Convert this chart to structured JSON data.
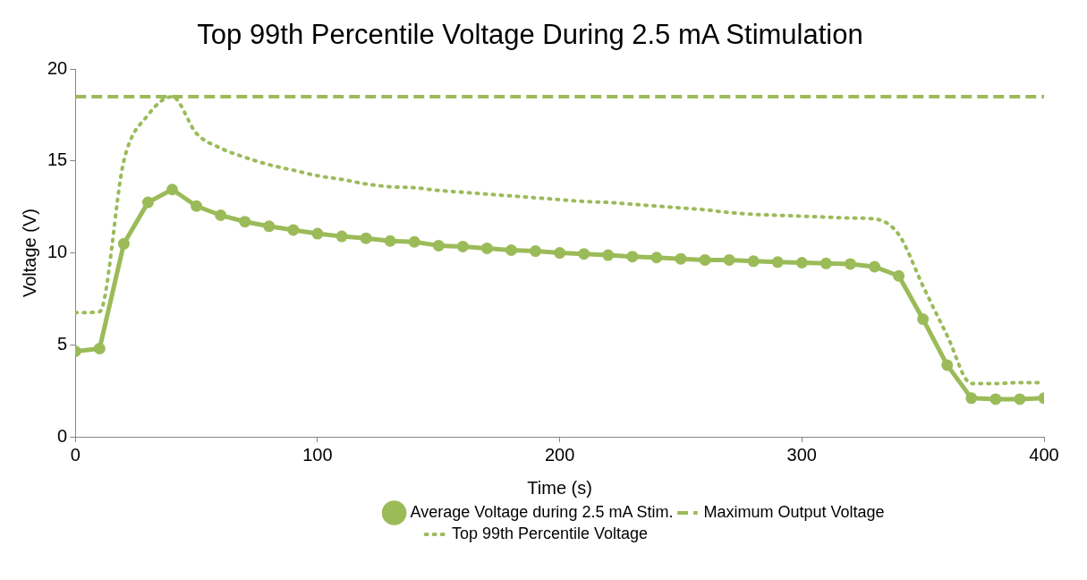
{
  "chart_data": {
    "type": "line",
    "title": "Top 99th Percentile Voltage During 2.5 mA Stimulation",
    "xlabel": "Time (s)",
    "ylabel": "Voltage (V)",
    "x": [
      0,
      10,
      20,
      30,
      40,
      50,
      60,
      70,
      80,
      90,
      100,
      110,
      120,
      130,
      140,
      150,
      160,
      170,
      180,
      190,
      200,
      210,
      220,
      230,
      240,
      250,
      260,
      270,
      280,
      290,
      300,
      310,
      320,
      330,
      340,
      350,
      360,
      370,
      380,
      390,
      400
    ],
    "series": [
      {
        "name": "Average Voltage during 2.5 mA Stim.",
        "color": "#9bbb59",
        "marker": "circle",
        "line_style": "solid",
        "values": [
          4.65,
          4.8,
          10.5,
          12.75,
          13.45,
          12.55,
          12.05,
          11.7,
          11.45,
          11.25,
          11.05,
          10.9,
          10.8,
          10.65,
          10.6,
          10.4,
          10.35,
          10.25,
          10.15,
          10.1,
          10.0,
          9.95,
          9.88,
          9.8,
          9.75,
          9.68,
          9.62,
          9.62,
          9.55,
          9.5,
          9.47,
          9.43,
          9.4,
          9.25,
          8.75,
          6.4,
          3.9,
          2.1,
          2.05,
          2.05,
          2.1
        ]
      },
      {
        "name": "Maximum Output Voltage",
        "color": "#9bbb59",
        "marker": "none",
        "line_style": "dashed",
        "values": [
          18.5,
          18.5,
          18.5,
          18.5,
          18.5,
          18.5,
          18.5,
          18.5,
          18.5,
          18.5,
          18.5,
          18.5,
          18.5,
          18.5,
          18.5,
          18.5,
          18.5,
          18.5,
          18.5,
          18.5,
          18.5,
          18.5,
          18.5,
          18.5,
          18.5,
          18.5,
          18.5,
          18.5,
          18.5,
          18.5,
          18.5,
          18.5,
          18.5,
          18.5,
          18.5,
          18.5,
          18.5,
          18.5,
          18.5,
          18.5,
          18.5
        ]
      },
      {
        "name": "Top 99th Percentile Voltage",
        "color": "#9bbb59",
        "marker": "none",
        "line_style": "dotted",
        "values": [
          6.75,
          6.8,
          15.0,
          17.5,
          18.5,
          16.5,
          15.7,
          15.2,
          14.8,
          14.5,
          14.2,
          14.0,
          13.75,
          13.6,
          13.55,
          13.4,
          13.3,
          13.2,
          13.1,
          13.0,
          12.9,
          12.8,
          12.75,
          12.65,
          12.55,
          12.45,
          12.35,
          12.2,
          12.1,
          12.05,
          12.0,
          11.95,
          11.9,
          11.85,
          11.0,
          8.2,
          5.5,
          2.9,
          2.9,
          2.95,
          2.95
        ]
      }
    ],
    "xlim": [
      0,
      400
    ],
    "xticks": [
      0,
      100,
      200,
      300,
      400
    ],
    "ylim": [
      0,
      20
    ],
    "yticks": [
      0,
      5,
      10,
      15,
      20
    ],
    "grid": false,
    "legend": "bottom"
  }
}
